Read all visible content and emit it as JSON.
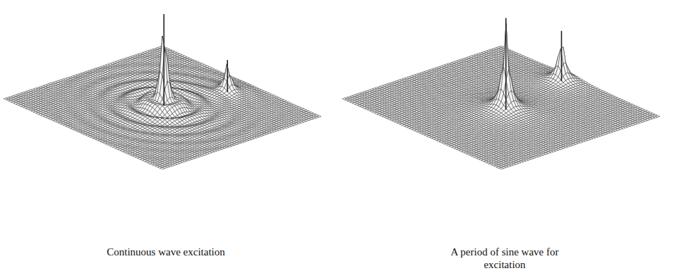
{
  "chart_data": [
    {
      "type": "surface",
      "title": "Continuous wave excitation",
      "xlim": [
        0,
        1
      ],
      "ylim": [
        0,
        1
      ],
      "zlim": [
        0,
        1
      ],
      "tick_labels": false,
      "grid": true,
      "color": "#222222",
      "line_style": "rippled",
      "peaks": [
        {
          "x": 0.52,
          "y": 0.49,
          "z": 1.0
        },
        {
          "x": 0.86,
          "y": 0.55,
          "z": 0.35
        }
      ]
    },
    {
      "type": "surface",
      "title": "A period of sine wave for excitation",
      "xlim": [
        0,
        1
      ],
      "ylim": [
        0,
        1
      ],
      "zlim": [
        0,
        1
      ],
      "tick_labels": false,
      "grid": true,
      "color": "#222222",
      "line_style": "smooth",
      "peaks": [
        {
          "x": 0.5,
          "y": 0.53,
          "z": 1.0
        },
        {
          "x": 0.93,
          "y": 0.45,
          "z": 0.55
        }
      ]
    }
  ]
}
